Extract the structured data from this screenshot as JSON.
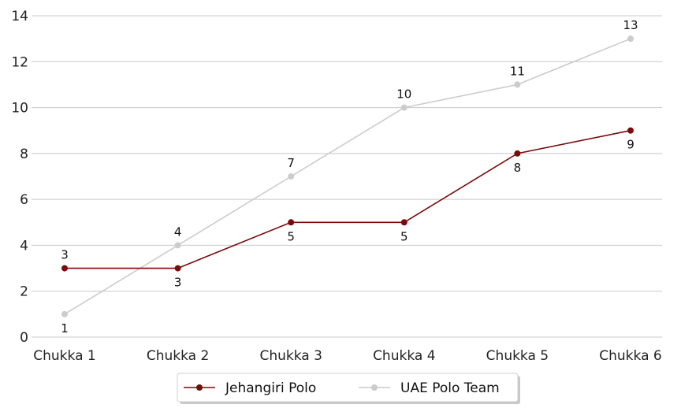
{
  "chart_data": {
    "type": "line",
    "categories": [
      "Chukka 1",
      "Chukka 2",
      "Chukka 3",
      "Chukka 4",
      "Chukka 5",
      "Chukka 6"
    ],
    "series": [
      {
        "name": "Jehangiri Polo",
        "values": [
          3,
          3,
          5,
          5,
          8,
          9
        ],
        "color": "#7b0a0a",
        "label_position": [
          "above",
          "below",
          "below",
          "below",
          "below",
          "below"
        ]
      },
      {
        "name": "UAE Polo Team",
        "values": [
          1,
          4,
          7,
          10,
          11,
          13
        ],
        "color": "#cccccc",
        "label_position": [
          "below",
          "above",
          "above",
          "above",
          "above",
          "above"
        ]
      }
    ],
    "ylim": [
      0,
      14
    ],
    "yticks": [
      0,
      2,
      4,
      6,
      8,
      10,
      12,
      14
    ],
    "grid": "horizontal",
    "legend_position": "bottom-center"
  }
}
